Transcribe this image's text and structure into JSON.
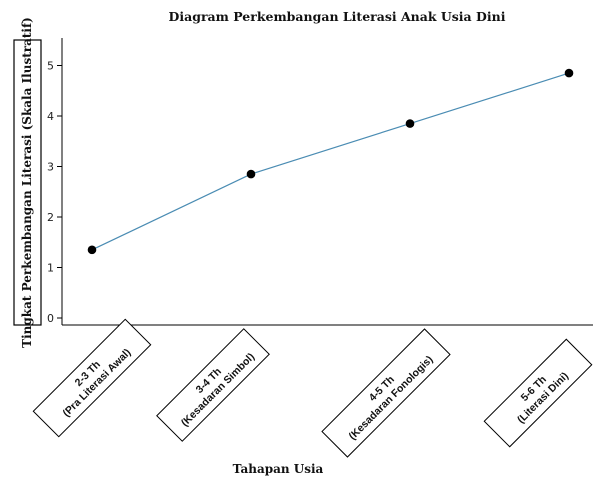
{
  "chart_data": {
    "type": "line",
    "title": "Diagram Perkembangan Literasi Anak Usia Dini",
    "xlabel": "Tahapan Usia",
    "ylabel": "Tingkat Perkembangan Literasi (Skala Ilustratif)",
    "categories": [
      {
        "line1": "2-3 Th",
        "line2": "(Pra Literasi Awal)"
      },
      {
        "line1": "3-4 Th",
        "line2": "(Kesadaran Simbol)"
      },
      {
        "line1": "4-5 Th",
        "line2": "(Kesadaran Fonologis)"
      },
      {
        "line1": "5-6 Th",
        "line2": "(Literasi Dini)"
      }
    ],
    "x": [
      2.5,
      3.5,
      4.5,
      5.5
    ],
    "values": [
      1.35,
      2.85,
      3.85,
      4.85
    ],
    "ylim": [
      0,
      5.5
    ],
    "yticks": [
      0,
      1,
      2,
      3,
      4,
      5
    ],
    "grid": false,
    "line_color": "#4a8cb3",
    "marker_color": "#000000"
  }
}
